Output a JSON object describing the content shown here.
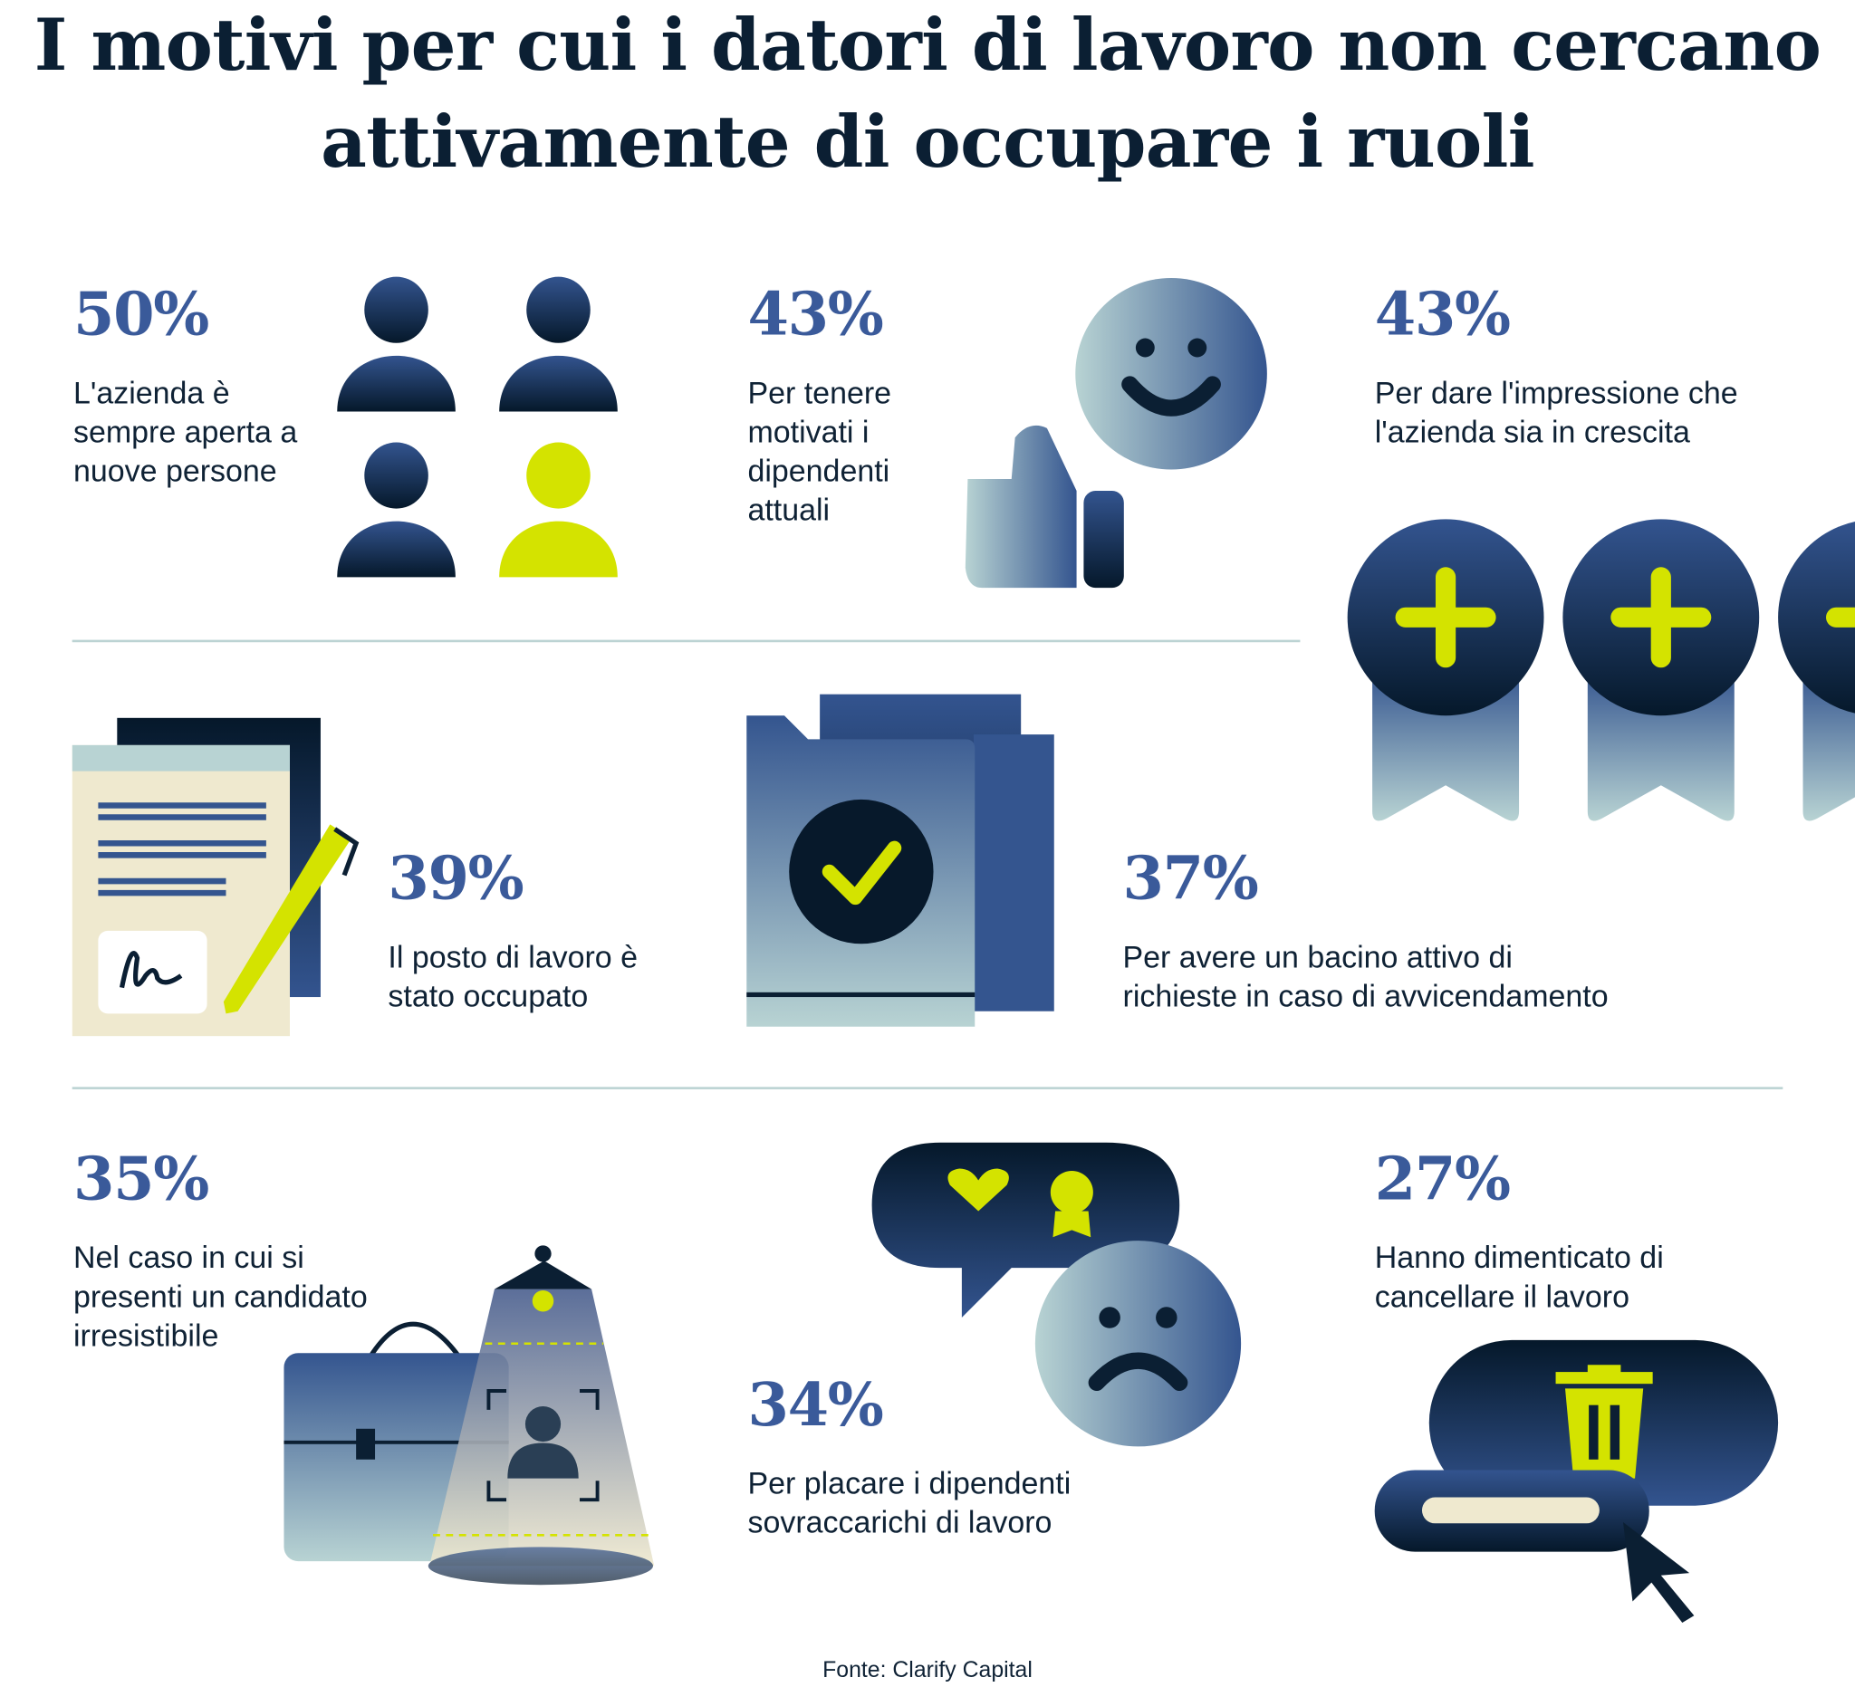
{
  "title": {
    "line1": "I motivi per cui i datori di lavoro non cercano",
    "line2": "attivamente di occupare i ruoli"
  },
  "stats": [
    {
      "percent": "50%",
      "text": "L'azienda è\nsempre aperta a\nnuove persone",
      "icon": "people-group-icon"
    },
    {
      "percent": "43%",
      "text": "Per tenere\nmotivati i\ndipendenti\nattuali",
      "icon": "smiley-thumbs-up-icon"
    },
    {
      "percent": "43%",
      "text": "Per dare l'impressione che\nl'azienda sia in crescita",
      "icon": "plus-medals-icon"
    },
    {
      "percent": "39%",
      "text": "Il posto di lavoro è\nstato occupato",
      "icon": "signed-contract-icon"
    },
    {
      "percent": "37%",
      "text": "Per avere un bacino attivo di\nrichieste in caso di avvicendamento",
      "icon": "checked-folder-icon"
    },
    {
      "percent": "35%",
      "text": "Nel caso in cui si\npresenti un candidato\nirresistibile",
      "icon": "briefcase-spotlight-icon"
    },
    {
      "percent": "34%",
      "text": "Per placare i dipendenti\nsovraccarichi di lavoro",
      "icon": "sad-face-speech-bubble-icon"
    },
    {
      "percent": "27%",
      "text": "Hanno dimenticato di\ncancellare il lavoro",
      "icon": "trash-cursor-icon"
    }
  ],
  "source": "Fonte: Clarify Capital",
  "colors": {
    "navy": "#0b1f33",
    "accent_blue": "#3a5a9a",
    "lime": "#d4e300",
    "teal_light": "#b8d3d3",
    "cream": "#efe9cf"
  }
}
